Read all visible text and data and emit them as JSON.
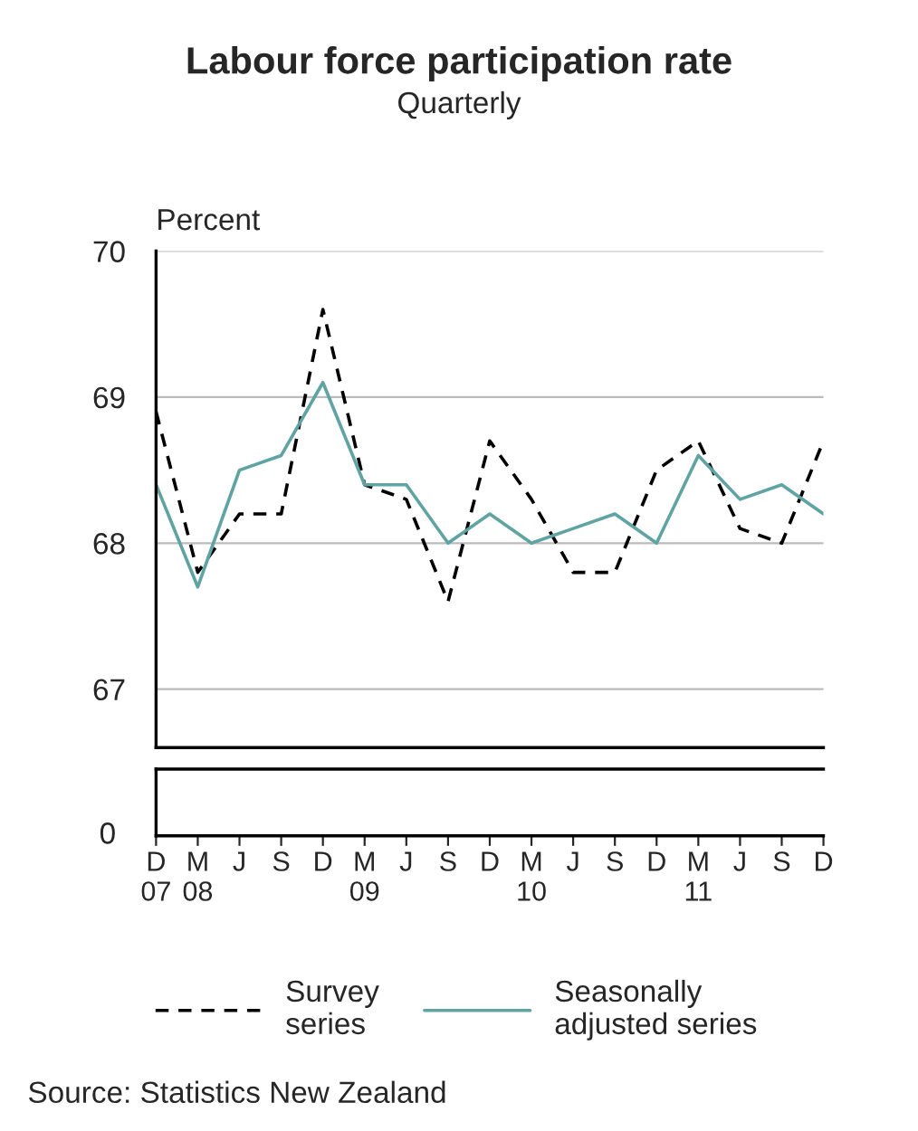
{
  "chart_data": {
    "type": "line",
    "title": "Labour force participation rate",
    "subtitle": "Quarterly",
    "ylabel": "Percent",
    "categories": [
      "D\n07",
      "M\n08",
      "J",
      "S",
      "D",
      "M\n09",
      "J",
      "S",
      "D",
      "M\n10",
      "J",
      "S",
      "D",
      "M\n11",
      "J",
      "S",
      "D"
    ],
    "series": [
      {
        "name": "Survey\nseries",
        "color": "#000000",
        "line_style": "dashed",
        "values": [
          68.9,
          67.8,
          68.2,
          68.2,
          69.6,
          68.4,
          68.3,
          67.6,
          68.7,
          68.3,
          67.8,
          67.8,
          68.5,
          68.7,
          68.1,
          68.0,
          68.7
        ]
      },
      {
        "name": "Seasonally\nadjusted series",
        "color": "#5fa3a3",
        "line_style": "solid",
        "values": [
          68.4,
          67.7,
          68.5,
          68.6,
          69.1,
          68.4,
          68.4,
          68.0,
          68.2,
          68.0,
          68.1,
          68.2,
          68.0,
          68.6,
          68.3,
          68.4,
          68.2
        ]
      }
    ],
    "ylim": [
      66.6,
      70
    ],
    "yticks": [
      67,
      68,
      69,
      70
    ],
    "grid": "y",
    "legend": "bottom",
    "annotations": [
      "0",
      "Source: Statistics New Zealand"
    ]
  }
}
